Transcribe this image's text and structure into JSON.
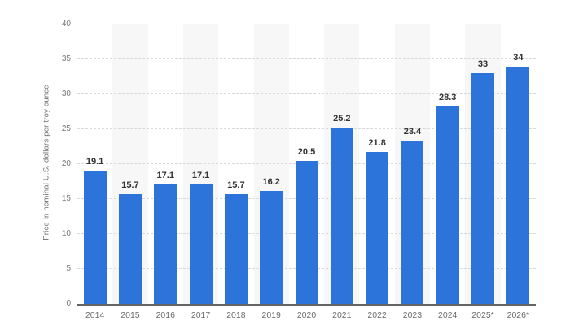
{
  "chart_data": {
    "type": "bar",
    "title": "",
    "xlabel": "",
    "ylabel": "Price in nominal U.S. dollars per troy ounce",
    "categories": [
      "2014",
      "2015",
      "2016",
      "2017",
      "2018",
      "2019",
      "2020",
      "2021",
      "2022",
      "2023",
      "2024",
      "2025*",
      "2026*"
    ],
    "values": [
      19.1,
      15.7,
      17.1,
      17.1,
      15.7,
      16.2,
      20.5,
      25.2,
      21.8,
      23.4,
      28.3,
      33,
      34
    ],
    "value_labels": [
      "19.1",
      "15.7",
      "17.1",
      "17.1",
      "15.7",
      "16.2",
      "20.5",
      "25.2",
      "21.8",
      "23.4",
      "28.3",
      "33",
      "34"
    ],
    "yticks": [
      0,
      5,
      10,
      15,
      20,
      25,
      30,
      35,
      40
    ],
    "ylim": [
      0,
      40
    ],
    "grid": true,
    "grid_style": "dashed",
    "legend": false,
    "shaded_band_categories": [
      "2015",
      "2017",
      "2019",
      "2021",
      "2023",
      "2025*"
    ]
  },
  "colors": {
    "bar": "#2d74da",
    "plot_band": "#f7f7f7",
    "gridline": "#d9d9d9",
    "axis_line": "#636363",
    "y_tick_label": "#767676",
    "x_tick_label": "#6b6b6b",
    "value_label": "#333333",
    "axis_title": "#6f6f6f",
    "background": "#ffffff"
  }
}
